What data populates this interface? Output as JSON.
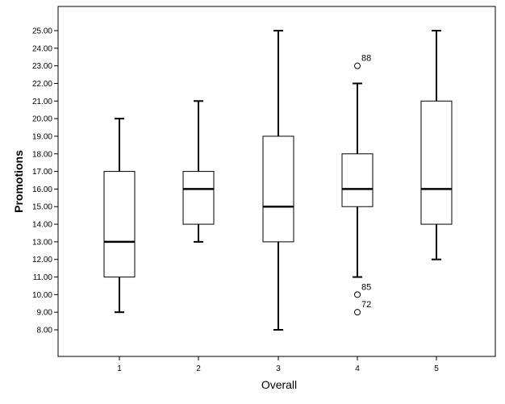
{
  "chart_data": {
    "type": "boxplot",
    "xlabel": "Overall",
    "ylabel": "Promotions",
    "ylim": [
      7.0,
      26.0
    ],
    "y_ticks": [
      "8.00",
      "9.00",
      "10.00",
      "11.00",
      "12.00",
      "13.00",
      "14.00",
      "15.00",
      "16.00",
      "17.00",
      "18.00",
      "19.00",
      "20.00",
      "21.00",
      "22.00",
      "23.00",
      "24.00",
      "25.00"
    ],
    "categories": [
      "1",
      "2",
      "3",
      "4",
      "5"
    ],
    "boxes": [
      {
        "category": "1",
        "whisker_low": 9,
        "q1": 11,
        "median": 13,
        "q3": 17,
        "whisker_high": 20,
        "outliers": []
      },
      {
        "category": "2",
        "whisker_low": 13,
        "q1": 14,
        "median": 16,
        "q3": 17,
        "whisker_high": 21,
        "outliers": []
      },
      {
        "category": "3",
        "whisker_low": 8,
        "q1": 13,
        "median": 15,
        "q3": 19,
        "whisker_high": 25,
        "outliers": []
      },
      {
        "category": "4",
        "whisker_low": 11,
        "q1": 15,
        "median": 16,
        "q3": 18,
        "whisker_high": 22,
        "outliers": [
          {
            "value": 23,
            "label": "88"
          },
          {
            "value": 10,
            "label": "85"
          },
          {
            "value": 9,
            "label": "72"
          }
        ]
      },
      {
        "category": "5",
        "whisker_low": 12,
        "q1": 14,
        "median": 16,
        "q3": 21,
        "whisker_high": 25,
        "outliers": []
      }
    ],
    "grid": false,
    "colors": {
      "box_fill": "#ffffff",
      "stroke": "#000000",
      "frame": "#000000"
    }
  }
}
